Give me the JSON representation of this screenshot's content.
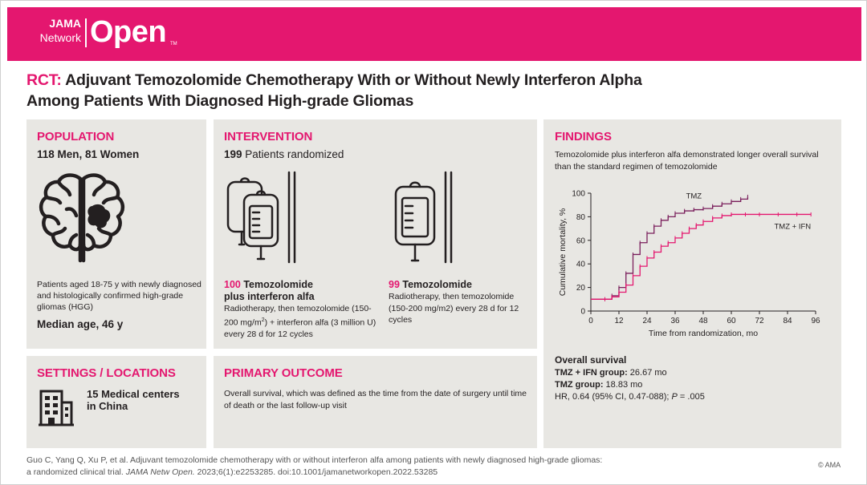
{
  "header": {
    "brand_top": "JAMA",
    "brand_network": "Network",
    "brand_open": "Open",
    "brand_tm": "TM",
    "bg_color": "#e4176f"
  },
  "title": {
    "prefix": "RCT:",
    "line1": "Adjuvant Temozolomide Chemotherapy With or Without Newly Interferon Alpha",
    "line2": "Among Patients With Diagnosed High-grade Gliomas"
  },
  "population": {
    "heading": "POPULATION",
    "count": "118 Men, 81 Women",
    "description": "Patients aged 18-75 y with newly diagnosed and histologically confirmed high-grade gliomas (HGG)",
    "median_age": "Median age, 46 y",
    "icon": "brain-icon"
  },
  "intervention": {
    "heading": "INTERVENTION",
    "randomized_number": "199",
    "randomized_text": "Patients randomized",
    "arm1": {
      "number": "100",
      "name_line1": "Temozolomide",
      "name_line2": "plus interferon alfa",
      "description_pre": "Radiotherapy, then temozolomide (150-200 mg/m",
      "description_sup": "2",
      "description_post": ") + interferon alfa (3 million U) every 28 d for 12 cycles",
      "icon": "two-iv-bags-icon"
    },
    "arm2": {
      "number": "99",
      "name": "Temozolomide",
      "description": "Radiotherapy, then temozolomide (150-200 mg/m2) every 28 d for 12 cycles",
      "icon": "iv-bag-icon"
    }
  },
  "findings": {
    "heading": "FINDINGS",
    "summary": "Temozolomide plus interferon alfa demonstrated longer overall survival than the standard regimen of temozolomide",
    "overall_survival": {
      "heading": "Overall survival",
      "tmz_ifn_label": "TMZ + IFN group:",
      "tmz_ifn_value": "26.67 mo",
      "tmz_label": "TMZ group:",
      "tmz_value": "18.83 mo",
      "hr_text_pre": "HR, 0.64 (95% CI, 0.47-088);",
      "hr_p_label": "P",
      "hr_text_post": " = .005"
    }
  },
  "chart_data": {
    "type": "line",
    "xlabel": "Time from randomization, mo",
    "ylabel": "Cumulative mortality, %",
    "xlim": [
      0,
      96
    ],
    "ylim": [
      0,
      100
    ],
    "x_ticks": [
      0,
      12,
      24,
      36,
      48,
      60,
      72,
      84,
      96
    ],
    "y_ticks": [
      0,
      20,
      40,
      60,
      80,
      100
    ],
    "series": [
      {
        "name": "TMZ",
        "color": "#7a1f5c",
        "x": [
          0,
          6,
          9,
          12,
          15,
          18,
          21,
          24,
          27,
          30,
          33,
          36,
          40,
          44,
          48,
          52,
          56,
          60,
          64,
          67
        ],
        "y": [
          10,
          10,
          13,
          20,
          32,
          48,
          58,
          66,
          72,
          77,
          80,
          83,
          85,
          86,
          87,
          89,
          91,
          93,
          95,
          97
        ]
      },
      {
        "name": "TMZ + IFN",
        "color": "#e4176f",
        "x": [
          0,
          6,
          9,
          12,
          15,
          18,
          21,
          24,
          27,
          30,
          33,
          36,
          39,
          42,
          45,
          48,
          52,
          56,
          60,
          66,
          72,
          80,
          88,
          94
        ],
        "y": [
          10,
          10,
          12,
          16,
          22,
          30,
          38,
          45,
          50,
          55,
          58,
          62,
          66,
          70,
          73,
          76,
          79,
          81,
          82,
          82,
          82,
          82,
          82,
          82
        ]
      }
    ]
  },
  "settings": {
    "heading": "SETTINGS / LOCATIONS",
    "text_line1": "15 Medical centers",
    "text_line2": "in China",
    "icon": "building-icon"
  },
  "primary_outcome": {
    "heading": "PRIMARY OUTCOME",
    "text": "Overall survival, which was defined as the time from the date of surgery until time of death or the last follow-up visit"
  },
  "footer": {
    "citation_line1": "Guo C, Yang Q, Xu P, et al. Adjuvant temozolomide chemotherapy with or without interferon alfa among patients with newly diagnosed high-grade gliomas:",
    "citation_line2_pre": "a randomized clinical trial.",
    "citation_journal": "JAMA Netw Open.",
    "citation_line2_post": "2023;6(1):e2253285. doi:10.1001/jamanetworkopen.2022.53285",
    "copyright": "© AMA"
  }
}
